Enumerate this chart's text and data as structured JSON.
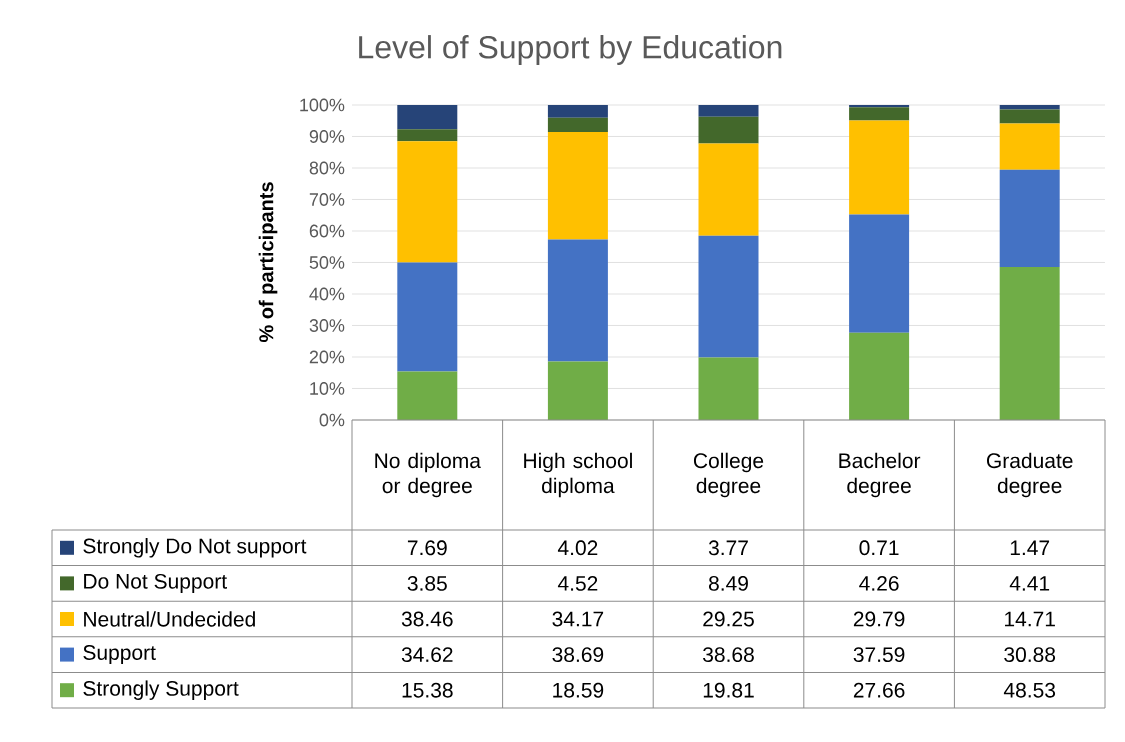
{
  "chart_data": {
    "type": "bar",
    "stacked": true,
    "title": "Level of Support by Education",
    "ylabel": "% of participants",
    "categories": [
      "No diploma or degree",
      "High school diploma",
      "College degree",
      "Bachelor degree",
      "Graduate degree"
    ],
    "series": [
      {
        "name": "Strongly Support",
        "color": "#70ad47",
        "values": [
          15.38,
          18.59,
          19.81,
          27.66,
          48.53
        ]
      },
      {
        "name": "Support",
        "color": "#4472c4",
        "values": [
          34.62,
          38.69,
          38.68,
          37.59,
          30.88
        ]
      },
      {
        "name": "Neutral/Undecided",
        "color": "#ffc000",
        "values": [
          38.46,
          34.17,
          29.25,
          29.79,
          14.71
        ]
      },
      {
        "name": "Do Not Support",
        "color": "#43682b",
        "values": [
          3.85,
          4.52,
          8.49,
          4.26,
          4.41
        ]
      },
      {
        "name": "Strongly Do Not support",
        "color": "#264478",
        "values": [
          7.69,
          4.02,
          3.77,
          0.71,
          1.47
        ]
      }
    ],
    "ylim": [
      0,
      100
    ],
    "yticks": [
      {
        "value": 0,
        "label": "0%"
      },
      {
        "value": 10,
        "label": "10%"
      },
      {
        "value": 20,
        "label": "20%"
      },
      {
        "value": 30,
        "label": "30%"
      },
      {
        "value": 40,
        "label": "40%"
      },
      {
        "value": 50,
        "label": "50%"
      },
      {
        "value": 60,
        "label": "60%"
      },
      {
        "value": 70,
        "label": "70%"
      },
      {
        "value": 80,
        "label": "80%"
      },
      {
        "value": 90,
        "label": "90%"
      },
      {
        "value": 100,
        "label": "100%"
      }
    ],
    "grid": "y",
    "legend": "bottom",
    "data_labels": true
  }
}
